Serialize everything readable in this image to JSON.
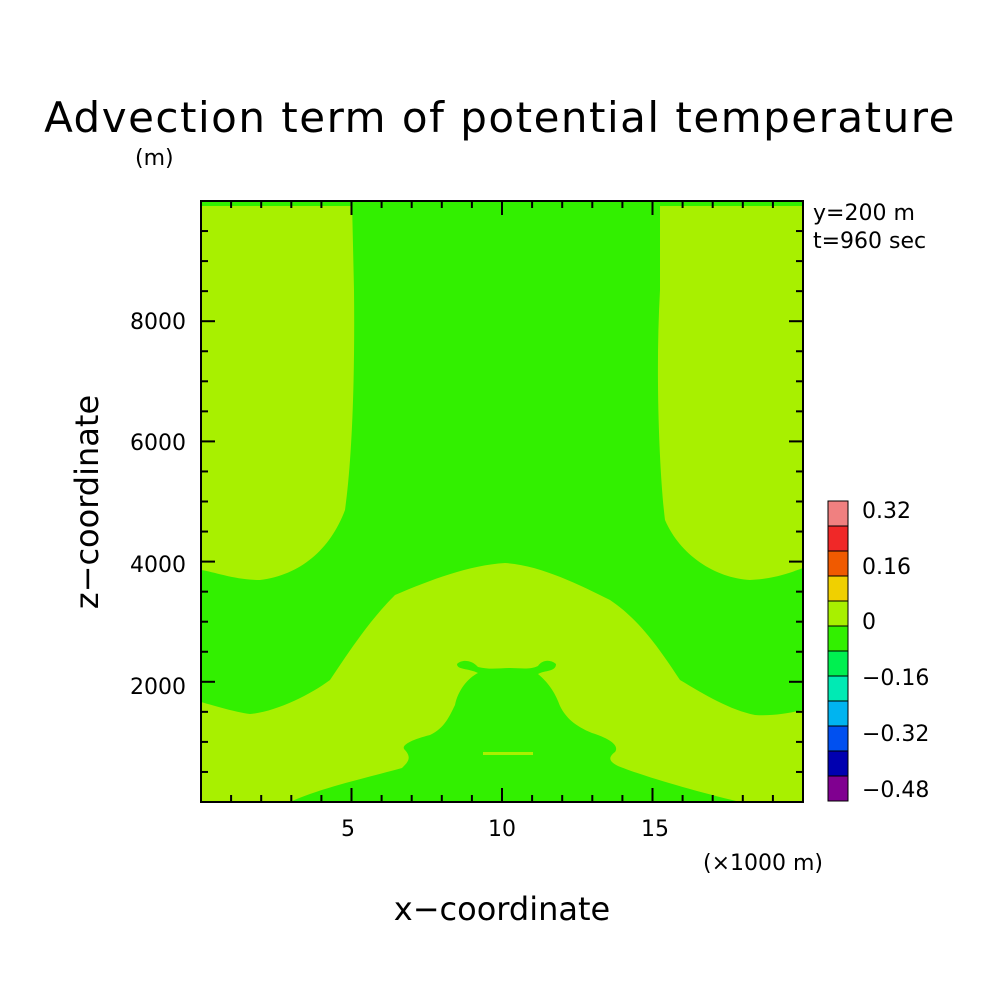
{
  "chart_data": {
    "type": "heatmap",
    "title": "Advection term of potential temperature",
    "y_unit": "(m)",
    "x_unit": "(×1000 m)",
    "xlabel": "x−coordinate",
    "ylabel": "z−coordinate",
    "annotations": [
      "y=200 m",
      "t=960 sec"
    ],
    "xlim": [
      0,
      20
    ],
    "ylim": [
      0,
      10000
    ],
    "x_ticks": [
      5,
      10,
      15
    ],
    "y_ticks": [
      2000,
      4000,
      6000,
      8000
    ],
    "x_tick_labels": [
      "5",
      "10",
      "15"
    ],
    "y_tick_labels": [
      "2000",
      "4000",
      "6000",
      "8000"
    ],
    "colorbar": {
      "labels": [
        "0.32",
        "0.16",
        "0",
        "−0.16",
        "−0.32",
        "−0.48"
      ],
      "levels": [
        -0.48,
        -0.4,
        -0.32,
        -0.24,
        -0.16,
        -0.08,
        0,
        0.08,
        0.16,
        0.24,
        0.32
      ],
      "colors": [
        "#800090",
        "#0000b0",
        "#0050f0",
        "#00b4f0",
        "#00eab4",
        "#00f050",
        "#32f000",
        "#a8f000",
        "#f0d000",
        "#f05a00",
        "#f02828",
        "#f08080"
      ]
    },
    "regions": {
      "background_class": "0 to 0.08",
      "background_color": "#a8f000",
      "negative_class": "-0.08 to 0",
      "negative_color": "#32f000"
    }
  }
}
